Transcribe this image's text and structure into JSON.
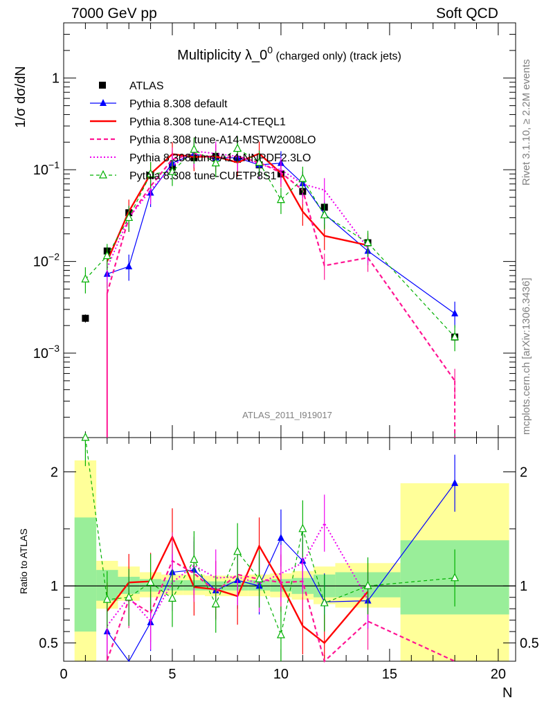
{
  "header": {
    "left": "7000 GeV pp",
    "right": "Soft QCD"
  },
  "side_labels": {
    "rivet": "Rivet 3.1.10, ≥ 2.2M events",
    "site": "mcplots.cern.ch [arXiv:1306.3436]"
  },
  "chart_data": [
    {
      "type": "line",
      "title_main": "Multiplicity λ_0",
      "title_sup": "0",
      "title_sub": "(charged only) (track jets)",
      "ylabel": "1/σ dσ/dN",
      "yscale": "log",
      "ylim": [
        0.00012,
        4
      ],
      "xlim": [
        0,
        20.8
      ],
      "analysis_tag": "ATLAS_2011_I919017",
      "yticks": [
        {
          "v": 0.001,
          "base": "10",
          "exp": "−3"
        },
        {
          "v": 0.01,
          "base": "10",
          "exp": "−2"
        },
        {
          "v": 0.1,
          "base": "10",
          "exp": "−1"
        },
        {
          "v": 1,
          "base": "1",
          "exp": ""
        }
      ],
      "legend_position": "top-left",
      "series": [
        {
          "name": "ATLAS",
          "color": "#000000",
          "style": "data",
          "x": [
            1,
            2,
            3,
            4,
            5,
            6,
            7,
            8,
            9,
            10,
            11,
            12,
            14,
            18
          ],
          "y": [
            0.0024,
            0.013,
            0.034,
            0.087,
            0.107,
            0.135,
            0.14,
            0.13,
            0.113,
            0.09,
            0.058,
            0.039,
            0.016,
            0.0015
          ]
        },
        {
          "name": "Pythia 8.308 default",
          "color": "#0000ff",
          "style": "solid-triangle",
          "x": [
            2,
            3,
            4,
            5,
            6,
            7,
            8,
            9,
            10,
            11,
            12,
            14,
            18
          ],
          "y": [
            0.0073,
            0.0088,
            0.056,
            0.118,
            0.148,
            0.135,
            0.135,
            0.113,
            0.118,
            0.071,
            0.033,
            0.013,
            0.0027
          ]
        },
        {
          "name": "Pythia 8.308 tune-A14-CTEQL1",
          "color": "#ff0000",
          "style": "solid-thick",
          "x": [
            2,
            3,
            4,
            5,
            6,
            7,
            8,
            9,
            10,
            11,
            12,
            14
          ],
          "y": [
            0.01,
            0.035,
            0.09,
            0.148,
            0.138,
            0.14,
            0.12,
            0.15,
            0.092,
            0.035,
            0.019,
            0.015
          ]
        },
        {
          "name": "Pythia 8.308 tune-A14-MSTW2008LO",
          "color": "#ff1493",
          "style": "dashed",
          "x": [
            2,
            3,
            4,
            5,
            6,
            7,
            8,
            9,
            10,
            11,
            12,
            14,
            18
          ],
          "y": [
            0.0045,
            0.03,
            0.066,
            0.13,
            0.15,
            0.133,
            0.14,
            0.12,
            0.093,
            0.06,
            0.009,
            0.011,
            0.0005
          ]
        },
        {
          "name": "Pythia 8.308 tune-A14-NNPDF2.3LO",
          "color": "#ee00ee",
          "style": "dotted",
          "x": [
            2,
            3,
            4,
            5,
            6,
            7,
            8,
            9,
            10,
            11,
            12,
            14
          ],
          "y": [
            0.0085,
            0.03,
            0.06,
            0.11,
            0.16,
            0.15,
            0.14,
            0.115,
            0.1,
            0.07,
            0.06,
            0.014
          ]
        },
        {
          "name": "Pythia 8.308 tune-CUETP8S1",
          "color": "#00b000",
          "style": "dashed-open-triangle",
          "x": [
            1,
            2,
            3,
            4,
            5,
            6,
            7,
            8,
            9,
            10,
            11,
            12,
            14,
            18
          ],
          "y": [
            0.0064,
            0.0115,
            0.03,
            0.09,
            0.095,
            0.166,
            0.118,
            0.17,
            0.12,
            0.047,
            0.08,
            0.032,
            0.016,
            0.0015
          ]
        }
      ]
    },
    {
      "type": "line",
      "ylabel": "Ratio to ATLAS",
      "xlabel": "N",
      "xlim": [
        0,
        20.8
      ],
      "ylim": [
        0.34,
        2.3
      ],
      "yticks": [
        0.5,
        1,
        2
      ],
      "xticks": [
        0,
        5,
        10,
        15,
        20
      ],
      "reference": 1,
      "band_bins": [
        [
          0.5,
          1.5
        ],
        [
          1.5,
          2.5
        ],
        [
          2.5,
          3.5
        ],
        [
          3.5,
          4.5
        ],
        [
          4.5,
          5.5
        ],
        [
          5.5,
          6.5
        ],
        [
          6.5,
          7.5
        ],
        [
          7.5,
          8.5
        ],
        [
          8.5,
          9.5
        ],
        [
          9.5,
          10.5
        ],
        [
          10.5,
          11.5
        ],
        [
          11.5,
          12.5
        ],
        [
          12.5,
          15.5
        ],
        [
          15.5,
          20.5
        ]
      ],
      "band_stat": [
        [
          0.6,
          1.6
        ],
        [
          0.87,
          1.14
        ],
        [
          0.93,
          1.08
        ],
        [
          0.95,
          1.06
        ],
        [
          0.96,
          1.05
        ],
        [
          0.96,
          1.05
        ],
        [
          0.96,
          1.04
        ],
        [
          0.96,
          1.04
        ],
        [
          0.96,
          1.05
        ],
        [
          0.95,
          1.06
        ],
        [
          0.93,
          1.07
        ],
        [
          0.9,
          1.1
        ],
        [
          0.9,
          1.12
        ],
        [
          0.75,
          1.4
        ]
      ],
      "band_total": [
        [
          0.34,
          2.1
        ],
        [
          0.8,
          1.22
        ],
        [
          0.87,
          1.17
        ],
        [
          0.9,
          1.12
        ],
        [
          0.92,
          1.1
        ],
        [
          0.92,
          1.1
        ],
        [
          0.91,
          1.09
        ],
        [
          0.91,
          1.09
        ],
        [
          0.91,
          1.1
        ],
        [
          0.9,
          1.11
        ],
        [
          0.88,
          1.13
        ],
        [
          0.84,
          1.17
        ],
        [
          0.81,
          1.2
        ],
        [
          0.34,
          1.9
        ]
      ],
      "series": [
        {
          "name": "Pythia 8.308 default",
          "x": [
            2,
            3,
            4,
            5,
            6,
            7,
            8,
            9,
            10,
            11,
            12,
            14,
            18
          ],
          "y": [
            0.6,
            0.26,
            0.68,
            1.12,
            1.14,
            0.96,
            1.05,
            1.0,
            1.42,
            1.22,
            0.86,
            0.87,
            1.9
          ]
        },
        {
          "name": "Pythia 8.308 tune-A14-CTEQL1",
          "x": [
            2,
            3,
            4,
            5,
            6,
            7,
            8,
            9,
            10,
            11,
            12,
            14
          ],
          "y": [
            0.78,
            1.03,
            1.04,
            1.43,
            0.99,
            0.97,
            0.91,
            1.35,
            1.02,
            0.65,
            0.5,
            0.95
          ]
        },
        {
          "name": "Pythia 8.308 tune-A14-MSTW2008LO",
          "x": [
            2,
            3,
            4,
            5,
            6,
            7,
            8,
            9,
            10,
            11,
            12,
            14,
            18
          ],
          "y": [
            0.35,
            0.88,
            0.76,
            1.22,
            1.11,
            0.95,
            1.1,
            1.06,
            1.03,
            1.04,
            0.23,
            0.69,
            0.33
          ]
        },
        {
          "name": "Pythia 8.308 tune-A14-NNPDF2.3LO",
          "x": [
            2,
            3,
            4,
            5,
            6,
            7,
            8,
            9,
            10,
            11,
            12,
            14
          ],
          "y": [
            0.65,
            0.9,
            0.69,
            1.03,
            1.18,
            1.07,
            1.08,
            1.02,
            1.11,
            1.2,
            1.55,
            0.88
          ]
        },
        {
          "name": "Pythia 8.308 tune-CUETP8S1",
          "x": [
            1,
            2,
            3,
            4,
            5,
            6,
            7,
            8,
            9,
            10,
            11,
            12,
            14,
            18
          ],
          "y": [
            2.3,
            0.88,
            0.9,
            1.03,
            0.89,
            1.23,
            0.84,
            1.3,
            1.06,
            0.57,
            1.5,
            0.85,
            1.0,
            1.07
          ]
        }
      ]
    }
  ]
}
